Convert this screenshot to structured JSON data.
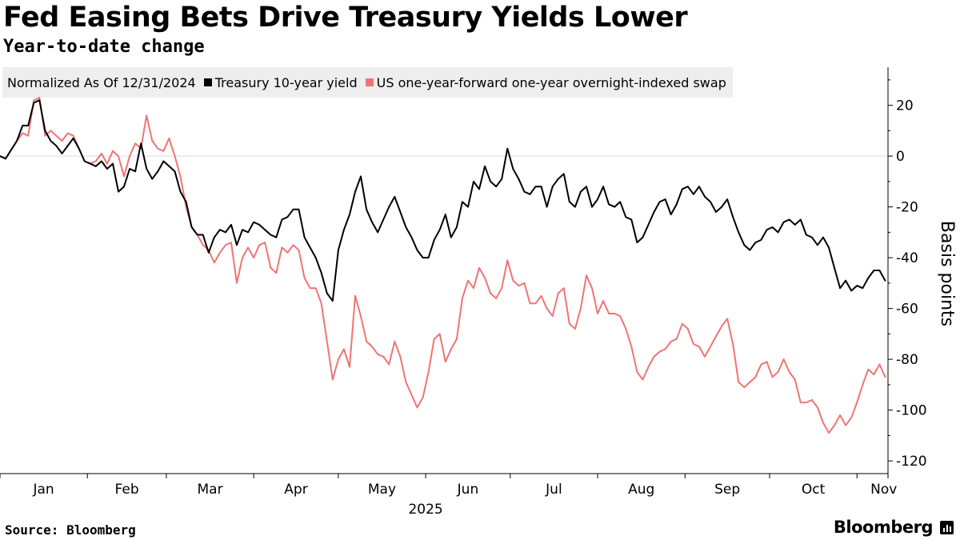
{
  "page": {
    "title": "Fed Easing Bets Drive Treasury Yields Lower",
    "subtitle": "Year-to-date change",
    "source": "Source: Bloomberg",
    "brand": "Bloomberg"
  },
  "legend": {
    "note": "Normalized As Of 12/31/2024",
    "entries": [
      {
        "label": "Treasury 10-year yield",
        "color": "#000000"
      },
      {
        "label": "US one-year-forward one-year overnight-indexed swap",
        "color": "#f07474"
      }
    ]
  },
  "chart_data": {
    "type": "line",
    "title": "Fed Easing Bets Drive Treasury Yields Lower",
    "subtitle": "Year-to-date change",
    "xlabel": "2025",
    "ylabel": "Basis points",
    "ylim": [
      -125,
      35
    ],
    "yticks": [
      20,
      0,
      -20,
      -40,
      -60,
      -80,
      -100,
      -120
    ],
    "x_ticks": [
      "Jan",
      "Feb",
      "Mar",
      "Apr",
      "May",
      "Jun",
      "Jul",
      "Aug",
      "Sep",
      "Oct",
      "Nov"
    ],
    "x_year_label": "2025",
    "x_range_days": [
      0,
      315
    ],
    "grid": false,
    "legend_position": "top-left",
    "series": [
      {
        "name": "Treasury 10-year yield",
        "color": "#000000",
        "points": [
          [
            0,
            0
          ],
          [
            2,
            -1
          ],
          [
            6,
            6
          ],
          [
            8,
            12
          ],
          [
            10,
            12
          ],
          [
            12,
            21
          ],
          [
            14,
            22
          ],
          [
            16,
            10
          ],
          [
            18,
            6
          ],
          [
            20,
            4
          ],
          [
            22,
            1
          ],
          [
            24,
            4
          ],
          [
            26,
            7
          ],
          [
            28,
            3
          ],
          [
            30,
            -2
          ],
          [
            32,
            -3
          ],
          [
            34,
            -4
          ],
          [
            36,
            -2
          ],
          [
            38,
            -5
          ],
          [
            40,
            -3
          ],
          [
            42,
            -14
          ],
          [
            44,
            -12
          ],
          [
            46,
            -5
          ],
          [
            48,
            -6
          ],
          [
            50,
            5
          ],
          [
            52,
            -5
          ],
          [
            54,
            -9
          ],
          [
            56,
            -6
          ],
          [
            58,
            -2
          ],
          [
            60,
            -4
          ],
          [
            62,
            -6
          ],
          [
            64,
            -14
          ],
          [
            66,
            -18
          ],
          [
            68,
            -28
          ],
          [
            70,
            -31
          ],
          [
            72,
            -31
          ],
          [
            74,
            -38
          ],
          [
            76,
            -32
          ],
          [
            78,
            -29
          ],
          [
            80,
            -30
          ],
          [
            82,
            -27
          ],
          [
            84,
            -35
          ],
          [
            86,
            -29
          ],
          [
            88,
            -30
          ],
          [
            90,
            -26
          ],
          [
            92,
            -27
          ],
          [
            94,
            -29
          ],
          [
            96,
            -31
          ],
          [
            98,
            -32
          ],
          [
            100,
            -25
          ],
          [
            102,
            -24
          ],
          [
            104,
            -21
          ],
          [
            106,
            -21
          ],
          [
            108,
            -32
          ],
          [
            110,
            -36
          ],
          [
            112,
            -40
          ],
          [
            114,
            -46
          ],
          [
            116,
            -54
          ],
          [
            118,
            -57
          ],
          [
            120,
            -37
          ],
          [
            122,
            -29
          ],
          [
            124,
            -23
          ],
          [
            126,
            -14
          ],
          [
            128,
            -8
          ],
          [
            130,
            -21
          ],
          [
            132,
            -26
          ],
          [
            134,
            -30
          ],
          [
            136,
            -25
          ],
          [
            138,
            -20
          ],
          [
            140,
            -16
          ],
          [
            142,
            -22
          ],
          [
            144,
            -28
          ],
          [
            146,
            -32
          ],
          [
            148,
            -37
          ],
          [
            150,
            -40
          ],
          [
            152,
            -40
          ],
          [
            154,
            -33
          ],
          [
            156,
            -29
          ],
          [
            158,
            -23
          ],
          [
            160,
            -32
          ],
          [
            162,
            -28
          ],
          [
            164,
            -18
          ],
          [
            166,
            -20
          ],
          [
            168,
            -10
          ],
          [
            170,
            -13
          ],
          [
            172,
            -4
          ],
          [
            174,
            -10
          ],
          [
            176,
            -12
          ],
          [
            178,
            -9
          ],
          [
            180,
            3
          ],
          [
            182,
            -5
          ],
          [
            184,
            -9
          ],
          [
            186,
            -14
          ],
          [
            188,
            -15
          ],
          [
            190,
            -12
          ],
          [
            192,
            -12
          ],
          [
            194,
            -20
          ],
          [
            196,
            -12
          ],
          [
            198,
            -9
          ],
          [
            200,
            -7
          ],
          [
            202,
            -18
          ],
          [
            204,
            -20
          ],
          [
            206,
            -14
          ],
          [
            208,
            -12
          ],
          [
            210,
            -20
          ],
          [
            212,
            -17
          ],
          [
            214,
            -12
          ],
          [
            216,
            -19
          ],
          [
            218,
            -20
          ],
          [
            220,
            -18
          ],
          [
            222,
            -24
          ],
          [
            224,
            -25
          ],
          [
            226,
            -34
          ],
          [
            228,
            -32
          ],
          [
            230,
            -27
          ],
          [
            232,
            -22
          ],
          [
            234,
            -18
          ],
          [
            236,
            -17
          ],
          [
            238,
            -23
          ],
          [
            240,
            -19
          ],
          [
            242,
            -13
          ],
          [
            244,
            -12
          ],
          [
            246,
            -15
          ],
          [
            248,
            -12
          ],
          [
            250,
            -16
          ],
          [
            252,
            -18
          ],
          [
            254,
            -22
          ],
          [
            256,
            -20
          ],
          [
            258,
            -17
          ],
          [
            260,
            -24
          ],
          [
            262,
            -30
          ],
          [
            264,
            -35
          ],
          [
            266,
            -37
          ],
          [
            268,
            -34
          ],
          [
            270,
            -33
          ],
          [
            272,
            -29
          ],
          [
            274,
            -28
          ],
          [
            276,
            -30
          ],
          [
            278,
            -26
          ],
          [
            280,
            -25
          ],
          [
            282,
            -27
          ],
          [
            284,
            -25
          ],
          [
            286,
            -31
          ],
          [
            288,
            -32
          ],
          [
            290,
            -35
          ],
          [
            292,
            -32
          ],
          [
            294,
            -36
          ],
          [
            296,
            -44
          ],
          [
            298,
            -52
          ],
          [
            300,
            -49
          ],
          [
            302,
            -53
          ],
          [
            304,
            -51
          ],
          [
            306,
            -52
          ],
          [
            308,
            -48
          ],
          [
            310,
            -45
          ],
          [
            312,
            -45
          ],
          [
            314,
            -49
          ]
        ]
      },
      {
        "name": "US one-year-forward one-year overnight-indexed swap",
        "color": "#f07474",
        "points": [
          [
            0,
            0
          ],
          [
            2,
            -1
          ],
          [
            6,
            6
          ],
          [
            8,
            9
          ],
          [
            10,
            8
          ],
          [
            12,
            22
          ],
          [
            14,
            23
          ],
          [
            16,
            8
          ],
          [
            18,
            10
          ],
          [
            20,
            8
          ],
          [
            22,
            6
          ],
          [
            24,
            9
          ],
          [
            26,
            8
          ],
          [
            28,
            3
          ],
          [
            30,
            -2
          ],
          [
            32,
            -3
          ],
          [
            34,
            -2
          ],
          [
            36,
            1
          ],
          [
            38,
            -3
          ],
          [
            40,
            2
          ],
          [
            42,
            0
          ],
          [
            44,
            -8
          ],
          [
            46,
            0
          ],
          [
            48,
            5
          ],
          [
            50,
            3
          ],
          [
            52,
            16
          ],
          [
            54,
            6
          ],
          [
            56,
            3
          ],
          [
            58,
            2
          ],
          [
            60,
            7
          ],
          [
            62,
            0
          ],
          [
            64,
            -8
          ],
          [
            66,
            -20
          ],
          [
            68,
            -28
          ],
          [
            70,
            -31
          ],
          [
            72,
            -35
          ],
          [
            74,
            -37
          ],
          [
            76,
            -42
          ],
          [
            78,
            -38
          ],
          [
            80,
            -35
          ],
          [
            82,
            -34
          ],
          [
            84,
            -50
          ],
          [
            86,
            -40
          ],
          [
            88,
            -36
          ],
          [
            90,
            -40
          ],
          [
            92,
            -35
          ],
          [
            94,
            -34
          ],
          [
            96,
            -44
          ],
          [
            98,
            -46
          ],
          [
            100,
            -36
          ],
          [
            102,
            -38
          ],
          [
            104,
            -35
          ],
          [
            106,
            -37
          ],
          [
            108,
            -48
          ],
          [
            110,
            -52
          ],
          [
            112,
            -52
          ],
          [
            114,
            -58
          ],
          [
            116,
            -73
          ],
          [
            118,
            -88
          ],
          [
            120,
            -80
          ],
          [
            122,
            -76
          ],
          [
            124,
            -83
          ],
          [
            126,
            -55
          ],
          [
            128,
            -63
          ],
          [
            130,
            -73
          ],
          [
            132,
            -75
          ],
          [
            134,
            -78
          ],
          [
            136,
            -79
          ],
          [
            138,
            -82
          ],
          [
            140,
            -73
          ],
          [
            142,
            -79
          ],
          [
            144,
            -89
          ],
          [
            146,
            -94
          ],
          [
            148,
            -99
          ],
          [
            150,
            -95
          ],
          [
            152,
            -85
          ],
          [
            154,
            -72
          ],
          [
            156,
            -70
          ],
          [
            158,
            -81
          ],
          [
            160,
            -76
          ],
          [
            162,
            -72
          ],
          [
            164,
            -56
          ],
          [
            166,
            -49
          ],
          [
            168,
            -52
          ],
          [
            170,
            -44
          ],
          [
            172,
            -48
          ],
          [
            174,
            -54
          ],
          [
            176,
            -56
          ],
          [
            178,
            -52
          ],
          [
            180,
            -41
          ],
          [
            182,
            -49
          ],
          [
            184,
            -51
          ],
          [
            186,
            -50
          ],
          [
            188,
            -58
          ],
          [
            190,
            -58
          ],
          [
            192,
            -55
          ],
          [
            194,
            -60
          ],
          [
            196,
            -63
          ],
          [
            198,
            -54
          ],
          [
            200,
            -52
          ],
          [
            202,
            -66
          ],
          [
            204,
            -68
          ],
          [
            206,
            -60
          ],
          [
            208,
            -47
          ],
          [
            210,
            -52
          ],
          [
            212,
            -62
          ],
          [
            214,
            -57
          ],
          [
            216,
            -62
          ],
          [
            218,
            -62
          ],
          [
            220,
            -63
          ],
          [
            222,
            -68
          ],
          [
            224,
            -75
          ],
          [
            226,
            -85
          ],
          [
            228,
            -88
          ],
          [
            230,
            -83
          ],
          [
            232,
            -79
          ],
          [
            234,
            -77
          ],
          [
            236,
            -76
          ],
          [
            238,
            -73
          ],
          [
            240,
            -72
          ],
          [
            242,
            -66
          ],
          [
            244,
            -68
          ],
          [
            246,
            -74
          ],
          [
            248,
            -75
          ],
          [
            250,
            -79
          ],
          [
            252,
            -75
          ],
          [
            254,
            -71
          ],
          [
            256,
            -67
          ],
          [
            258,
            -64
          ],
          [
            260,
            -74
          ],
          [
            262,
            -89
          ],
          [
            264,
            -91
          ],
          [
            266,
            -89
          ],
          [
            268,
            -87
          ],
          [
            270,
            -82
          ],
          [
            272,
            -81
          ],
          [
            274,
            -87
          ],
          [
            276,
            -85
          ],
          [
            278,
            -80
          ],
          [
            280,
            -85
          ],
          [
            282,
            -88
          ],
          [
            284,
            -97
          ],
          [
            286,
            -97
          ],
          [
            288,
            -96
          ],
          [
            290,
            -99
          ],
          [
            292,
            -105
          ],
          [
            294,
            -109
          ],
          [
            296,
            -106
          ],
          [
            298,
            -102
          ],
          [
            300,
            -106
          ],
          [
            302,
            -103
          ],
          [
            304,
            -97
          ],
          [
            306,
            -90
          ],
          [
            308,
            -84
          ],
          [
            310,
            -86
          ],
          [
            312,
            -82
          ],
          [
            314,
            -87
          ]
        ]
      }
    ]
  }
}
